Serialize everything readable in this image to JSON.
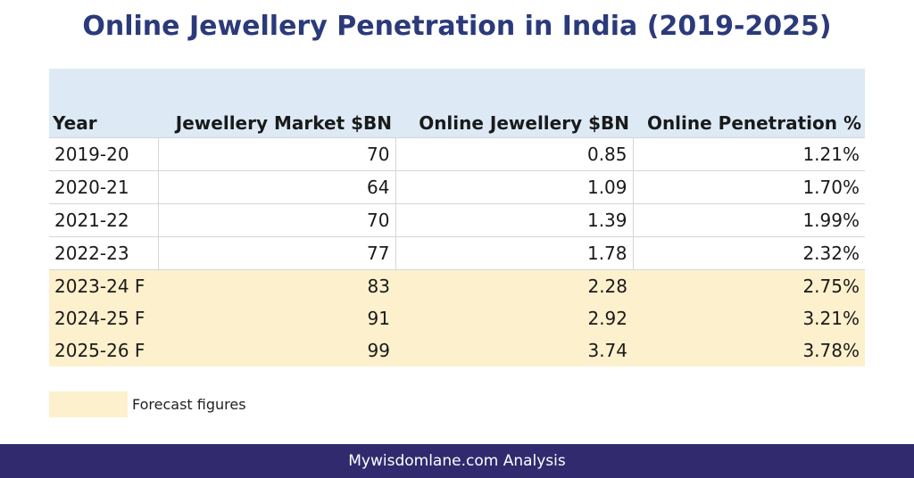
{
  "title": "Online Jewellery Penetration in India (2019-2025)",
  "table": {
    "headers": [
      "Year",
      "Jewellery Market $BN",
      "Online Jewellery $BN",
      "Online Penetration %"
    ],
    "rows": [
      {
        "year": "2019-20",
        "market": "70",
        "online": "0.85",
        "penetration": "1.21%",
        "forecast": false
      },
      {
        "year": "2020-21",
        "market": "64",
        "online": "1.09",
        "penetration": "1.70%",
        "forecast": false
      },
      {
        "year": "2021-22",
        "market": "70",
        "online": "1.39",
        "penetration": "1.99%",
        "forecast": false
      },
      {
        "year": "2022-23",
        "market": "77",
        "online": "1.78",
        "penetration": "2.32%",
        "forecast": false
      },
      {
        "year": "2023-24 F",
        "market": "83",
        "online": "2.28",
        "penetration": "2.75%",
        "forecast": true
      },
      {
        "year": "2024-25 F",
        "market": "91",
        "online": "2.92",
        "penetration": "3.21%",
        "forecast": true
      },
      {
        "year": "2025-26 F",
        "market": "99",
        "online": "3.74",
        "penetration": "3.78%",
        "forecast": true
      }
    ]
  },
  "legend": {
    "label": "Forecast figures",
    "color": "#fdf0cd"
  },
  "colors": {
    "header_bg": "#ddeaf6",
    "title": "#2b3a7a",
    "footer_bg": "#312a6e"
  },
  "footer": {
    "text": "Mywisdomlane.com Analysis"
  }
}
